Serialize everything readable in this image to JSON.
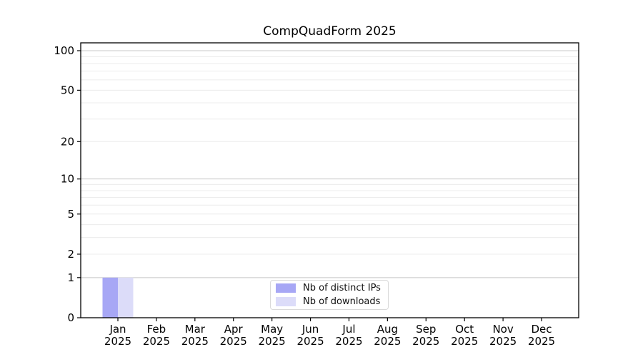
{
  "figure": {
    "title": "CompQuadForm 2025"
  },
  "chart_data": {
    "type": "bar",
    "title": "CompQuadForm 2025",
    "categories": [
      "Jan",
      "Feb",
      "Mar",
      "Apr",
      "May",
      "Jun",
      "Jul",
      "Aug",
      "Sep",
      "Oct",
      "Nov",
      "Dec"
    ],
    "category_year": "2025",
    "series": [
      {
        "name": "Nb of distinct IPs",
        "color": "#a7a7f5",
        "values": [
          1,
          0,
          0,
          0,
          0,
          0,
          0,
          0,
          0,
          0,
          0,
          0
        ]
      },
      {
        "name": "Nb of downloads",
        "color": "#dcdcf9",
        "values": [
          1,
          0,
          0,
          0,
          0,
          0,
          0,
          0,
          0,
          0,
          0,
          0
        ]
      }
    ],
    "xlabel": "",
    "ylabel": "",
    "yscale": "log10(1+v)",
    "ylim": [
      0,
      100
    ],
    "yticks": [
      0,
      1,
      2,
      5,
      10,
      20,
      50,
      100
    ],
    "grid": {
      "major": [
        1,
        10,
        100
      ],
      "minor": [
        2,
        3,
        4,
        5,
        6,
        7,
        8,
        9,
        20,
        30,
        40,
        50,
        60,
        70,
        80,
        90
      ]
    },
    "legend": {
      "position": "lower center"
    },
    "colors": {
      "axis": "#000000",
      "tick_text": "#000000",
      "grid_major": "#c8c8c8",
      "grid_minor": "#ececec",
      "legend_border": "#d9d9d9"
    }
  }
}
